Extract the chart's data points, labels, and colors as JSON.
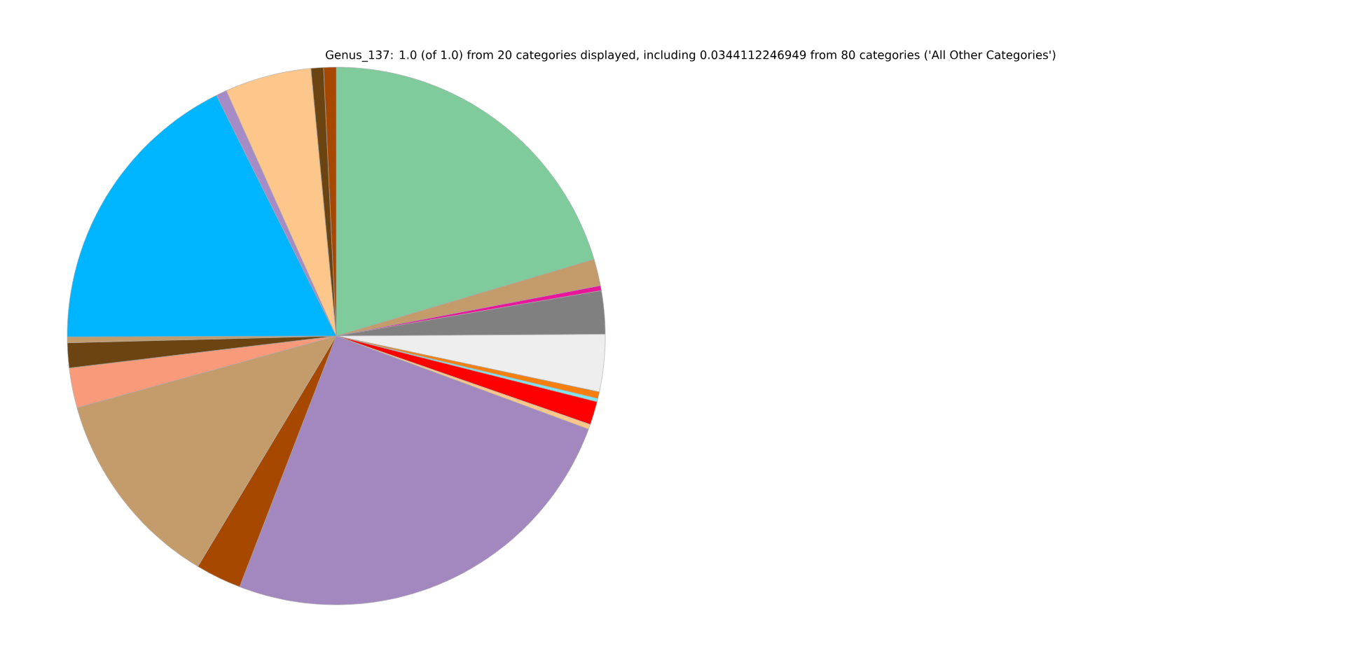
{
  "chart_data": {
    "type": "pie",
    "title": "Genus_137: 1.0 (of 1.0) from 20 categories displayed, including 0.0344112246949 from 80 categories ('All Other Categories')",
    "categories": [
      null,
      null,
      null,
      null,
      null,
      null,
      null,
      null,
      null,
      null,
      null,
      null,
      null,
      null,
      null,
      null,
      null,
      null,
      null,
      null
    ],
    "values": [
      20.4,
      1.6,
      0.3,
      2.6,
      3.44,
      0.4,
      0.2,
      1.4,
      0.3,
      25.21,
      2.75,
      12.1,
      2.4,
      1.5,
      0.35,
      17.7,
      0.65,
      5.2,
      0.75,
      0.75
    ],
    "colors": [
      "#7fcb9c",
      "#c49c6c",
      "#e8179a",
      "#808080",
      "#eeeeee",
      "#f77f0f",
      "#7fe5f0",
      "#ff0000",
      "#fdc68a",
      "#a388bf",
      "#a64800",
      "#c49c6c",
      "#f99b7b",
      "#6b4411",
      "#c49c6c",
      "#00b5ff",
      "#a58cc7",
      "#fdc68a",
      "#6b4411",
      "#a64800"
    ]
  }
}
